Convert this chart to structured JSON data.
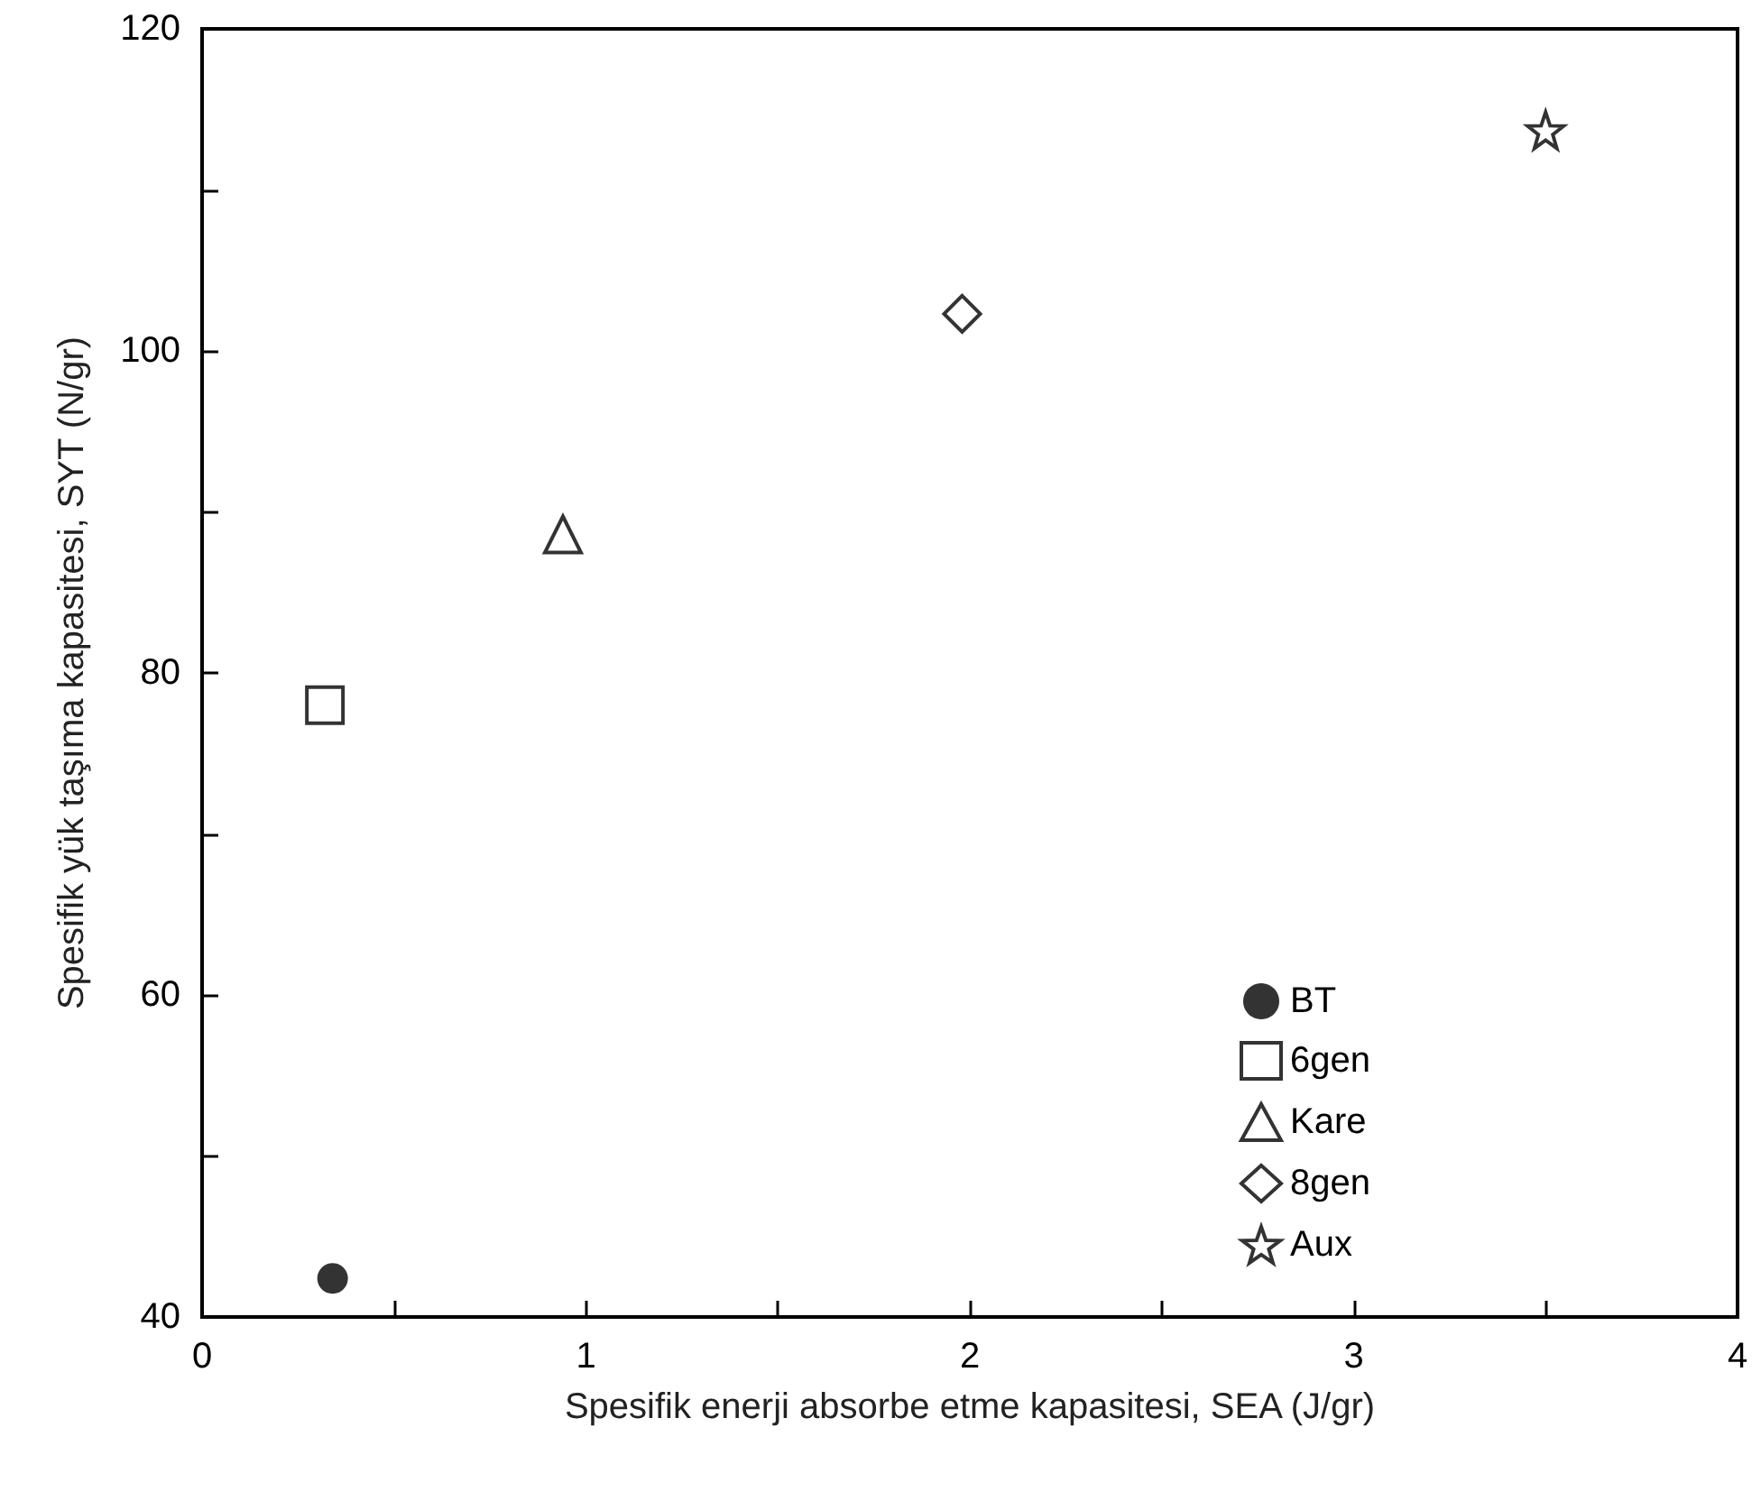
{
  "chart_data": {
    "type": "scatter",
    "xlabel": "Spesifik enerji absorbe etme kapasitesi, SEA (J/gr)",
    "ylabel": "Spesifik yük taşıma kapasitesi, SYT (N/gr)",
    "xlim": [
      0,
      4
    ],
    "xticks": [
      0,
      {
        "value": 0.5,
        "label": null
      },
      1,
      {
        "value": 1.5,
        "label": null
      },
      2,
      {
        "value": 2.5,
        "label": null
      },
      3,
      {
        "value": 3.5,
        "label": null
      },
      4
    ],
    "ylim": [
      40,
      120
    ],
    "yticks": [
      40,
      {
        "value": 50,
        "label": null
      },
      60,
      {
        "value": 70,
        "label": null
      },
      80,
      {
        "value": 90,
        "label": null
      },
      100,
      {
        "value": 110,
        "label": null
      },
      120
    ],
    "grid": false,
    "legend": "bottom right",
    "series": [
      {
        "name": "BT",
        "color": "#000000",
        "marker": "circle",
        "x": [
          0.34
        ],
        "values": [
          42.4
        ]
      },
      {
        "name": "6gen",
        "color": "#000000",
        "marker": "square",
        "x": [
          0.32
        ],
        "values": [
          78
        ]
      },
      {
        "name": "Kare",
        "color": "#000000",
        "marker": "triangle",
        "x": [
          0.94
        ],
        "values": [
          88.6
        ]
      },
      {
        "name": "8gen",
        "color": "#000000",
        "marker": "diamond",
        "x": [
          1.98
        ],
        "values": [
          102.3
        ]
      },
      {
        "name": "Aux",
        "color": "#000000",
        "marker": "star",
        "x": [
          3.5
        ],
        "values": [
          113.7
        ]
      }
    ]
  }
}
